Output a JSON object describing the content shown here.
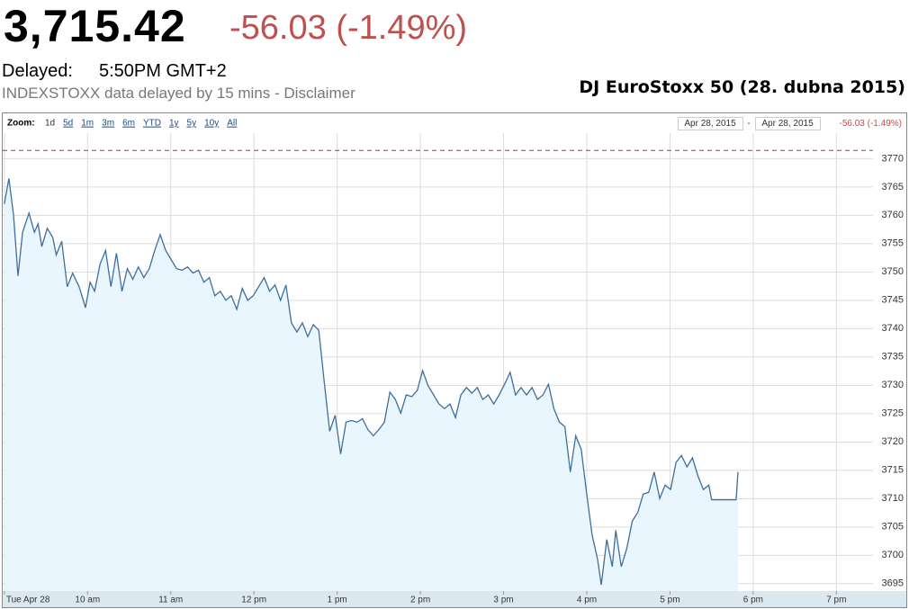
{
  "header": {
    "price": "3,715.42",
    "change": "-56.03 (-1.49%)",
    "delayed_label": "Delayed:",
    "time": "5:50PM GMT+2",
    "notice": "INDEXSTOXX data delayed by 15 mins - Disclaimer"
  },
  "toolbar": {
    "zoom_label": "Zoom:",
    "zoom_options": [
      "1d",
      "5d",
      "1m",
      "3m",
      "6m",
      "YTD",
      "1y",
      "5y",
      "10y",
      "All"
    ],
    "range_start": "Apr 28, 2015",
    "range_separator": "-",
    "range_end": "Apr 28, 2015",
    "range_change": "-56.03 (-1.49%)"
  },
  "chart_data": {
    "type": "line",
    "title": "DJ EuroStoxx 50 (28. dubna 2015)",
    "x": [
      9.0,
      9.055,
      9.11,
      9.164,
      9.219,
      9.296,
      9.361,
      9.405,
      9.449,
      9.515,
      9.581,
      9.624,
      9.69,
      9.756,
      9.821,
      9.898,
      9.975,
      10.03,
      10.084,
      10.15,
      10.216,
      10.281,
      10.347,
      10.413,
      10.478,
      10.544,
      10.61,
      10.676,
      10.742,
      10.807,
      10.873,
      10.939,
      11.004,
      11.07,
      11.136,
      11.202,
      11.267,
      11.333,
      11.399,
      11.464,
      11.53,
      11.596,
      11.662,
      11.727,
      11.793,
      11.859,
      11.924,
      11.99,
      12.056,
      12.122,
      12.187,
      12.253,
      12.319,
      12.384,
      12.45,
      12.516,
      12.582,
      12.647,
      12.713,
      12.779,
      12.844,
      12.91,
      12.976,
      13.042,
      13.107,
      13.173,
      13.239,
      13.304,
      13.37,
      13.436,
      13.502,
      13.567,
      13.633,
      13.699,
      13.764,
      13.83,
      13.896,
      13.962,
      14.027,
      14.093,
      14.159,
      14.224,
      14.29,
      14.356,
      14.422,
      14.487,
      14.553,
      14.619,
      14.684,
      14.75,
      14.816,
      14.882,
      14.947,
      15.013,
      15.079,
      15.144,
      15.21,
      15.276,
      15.342,
      15.407,
      15.473,
      15.539,
      15.604,
      15.67,
      15.736,
      15.802,
      15.867,
      15.933,
      15.999,
      16.064,
      16.13,
      16.174,
      16.24,
      16.306,
      16.349,
      16.415,
      16.481,
      16.547,
      16.613,
      16.678,
      16.744,
      16.81,
      16.876,
      16.941,
      17.007,
      17.073,
      17.138,
      17.204,
      17.27,
      17.336,
      17.401,
      17.467,
      17.5,
      17.795,
      17.817
    ],
    "series": [
      {
        "color": "#3d6f9e",
        "fill": "#e9f6fd",
        "values": [
          3762.0,
          3766.5,
          3760.1,
          3749.3,
          3757.0,
          3760.4,
          3757.0,
          3758.5,
          3754.5,
          3757.7,
          3756.1,
          3753.0,
          3755.4,
          3747.4,
          3749.8,
          3747.4,
          3743.7,
          3748.2,
          3746.6,
          3751.4,
          3753.8,
          3747.4,
          3753.3,
          3746.6,
          3750.6,
          3748.7,
          3750.9,
          3749.0,
          3750.6,
          3753.8,
          3756.6,
          3753.8,
          3752.2,
          3750.6,
          3750.3,
          3750.9,
          3749.8,
          3750.3,
          3748.2,
          3749.0,
          3745.8,
          3746.6,
          3745.0,
          3745.8,
          3743.4,
          3747.1,
          3745.0,
          3745.8,
          3747.4,
          3749.0,
          3746.6,
          3747.7,
          3745.0,
          3747.7,
          3741.0,
          3739.4,
          3741.0,
          3738.6,
          3740.7,
          3739.7,
          3730.7,
          3721.9,
          3724.7,
          3717.9,
          3723.5,
          3723.8,
          3723.5,
          3724.1,
          3722.2,
          3721.1,
          3722.2,
          3723.5,
          3728.8,
          3727.5,
          3725.1,
          3728.3,
          3728.0,
          3729.1,
          3732.6,
          3729.9,
          3728.3,
          3726.7,
          3725.9,
          3726.7,
          3724.3,
          3728.3,
          3729.6,
          3728.6,
          3729.6,
          3727.5,
          3728.3,
          3726.7,
          3728.3,
          3730.2,
          3732.3,
          3728.3,
          3729.6,
          3728.3,
          3729.6,
          3727.5,
          3728.3,
          3730.2,
          3725.9,
          3723.5,
          3722.7,
          3714.7,
          3721.1,
          3718.7,
          3710.8,
          3703.6,
          3699.3,
          3694.8,
          3702.8,
          3698.0,
          3704.4,
          3698.0,
          3701.2,
          3706.0,
          3707.6,
          3710.8,
          3711.1,
          3714.7,
          3710.0,
          3712.4,
          3711.6,
          3716.4,
          3717.6,
          3715.6,
          3717.2,
          3714.0,
          3711.6,
          3712.4,
          3709.8,
          3709.8,
          3714.7
        ]
      }
    ],
    "reference_line": {
      "value": 3771.45,
      "color": "#b03a2e",
      "style": "dashed"
    },
    "xlim": [
      8.98,
      19.44
    ],
    "ylim": [
      3693.7,
      3774.5
    ],
    "xticks": [
      {
        "value": 9,
        "label": "Tue Apr 28"
      },
      {
        "value": 10,
        "label": "10 am"
      },
      {
        "value": 11,
        "label": "11 am"
      },
      {
        "value": 12,
        "label": "12 pm"
      },
      {
        "value": 13,
        "label": "1 pm"
      },
      {
        "value": 14,
        "label": "2 pm"
      },
      {
        "value": 15,
        "label": "3 pm"
      },
      {
        "value": 16,
        "label": "4 pm"
      },
      {
        "value": 17,
        "label": "5 pm"
      },
      {
        "value": 18,
        "label": "6 pm"
      },
      {
        "value": 19,
        "label": "7 pm"
      }
    ],
    "yticks": [
      3695,
      3700,
      3705,
      3710,
      3715,
      3720,
      3725,
      3730,
      3735,
      3740,
      3745,
      3750,
      3755,
      3760,
      3765,
      3770
    ],
    "grid": true
  }
}
